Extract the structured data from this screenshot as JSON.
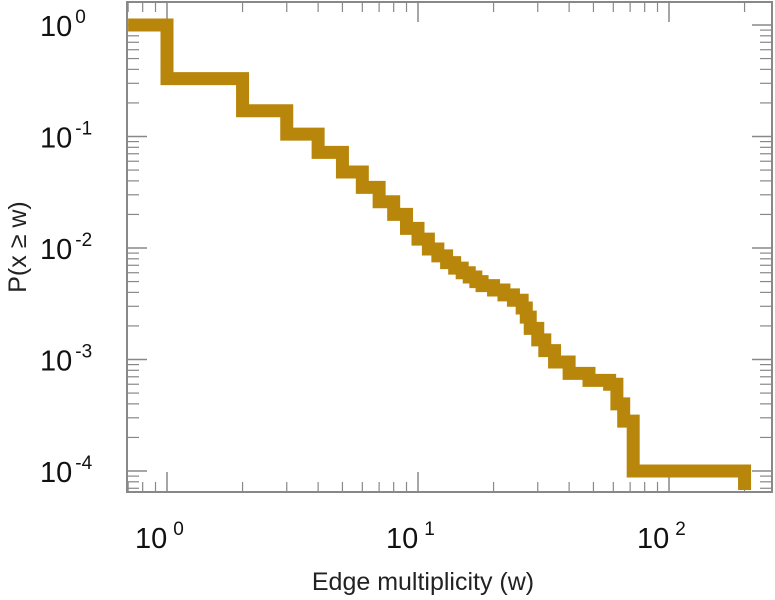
{
  "chart_data": {
    "type": "line",
    "title": "",
    "xlabel": "Edge multiplicity (w)",
    "ylabel": "P(x ≥ w)",
    "xscale": "log",
    "yscale": "log",
    "xlim": [
      0.7,
      320
    ],
    "ylim": [
      6e-05,
      1.4
    ],
    "grid": false,
    "legend": "none",
    "line_color": "#b8860b",
    "x_ticks": [
      {
        "value": 1,
        "base": "10",
        "exp": "0"
      },
      {
        "value": 10,
        "base": "10",
        "exp": "1"
      },
      {
        "value": 100,
        "base": "10",
        "exp": "2"
      }
    ],
    "y_ticks": [
      {
        "value": 1,
        "base": "10",
        "exp": "0"
      },
      {
        "value": 0.1,
        "base": "10",
        "exp": "-1"
      },
      {
        "value": 0.01,
        "base": "10",
        "exp": "-2"
      },
      {
        "value": 0.001,
        "base": "10",
        "exp": "-3"
      },
      {
        "value": 0.0001,
        "base": "10",
        "exp": "-4"
      }
    ],
    "series": [
      {
        "step": "post",
        "x": [
          0.7,
          1,
          2,
          3,
          4,
          5,
          6,
          7,
          8,
          9,
          10,
          11,
          12,
          13,
          14,
          15,
          16,
          17,
          18,
          20,
          22,
          24,
          26,
          27,
          28,
          30,
          32,
          35,
          40,
          48,
          58,
          62,
          66,
          72,
          200
        ],
        "y": [
          1.0,
          0.33,
          0.17,
          0.105,
          0.072,
          0.048,
          0.035,
          0.026,
          0.02,
          0.015,
          0.012,
          0.0098,
          0.0085,
          0.0074,
          0.0066,
          0.006,
          0.0055,
          0.005,
          0.0046,
          0.0042,
          0.0038,
          0.0034,
          0.0029,
          0.0024,
          0.0019,
          0.0015,
          0.0012,
          0.00095,
          0.00075,
          0.00065,
          0.0006,
          0.0004,
          0.00028,
          0.0001,
          0.0001
        ]
      }
    ]
  }
}
